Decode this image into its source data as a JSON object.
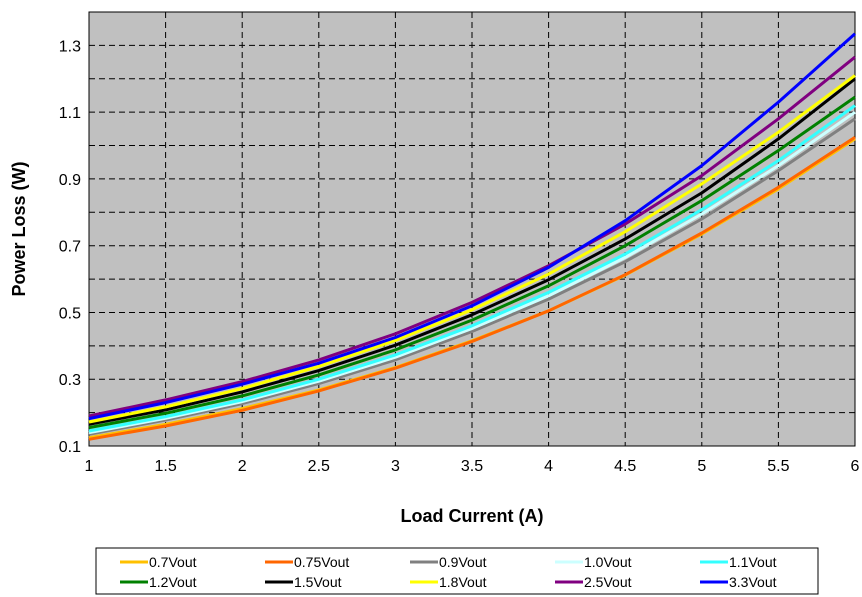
{
  "chart_data": {
    "type": "line",
    "title": "",
    "xlabel": "Load Current (A)",
    "ylabel": "Power Loss (W)",
    "xlim": [
      1,
      6
    ],
    "ylim": [
      0.1,
      1.4
    ],
    "xticks": [
      "1",
      "1.5",
      "2",
      "2.5",
      "3",
      "3.5",
      "4",
      "4.5",
      "5",
      "5.5",
      "6"
    ],
    "yticks": [
      "0.1",
      "0.3",
      "0.5",
      "0.7",
      "0.9",
      "1.1",
      "1.3"
    ],
    "grid": true,
    "legend_position": "bottom",
    "plot_background": "#c0c0c0",
    "x": [
      1,
      1.5,
      2,
      2.5,
      3,
      3.5,
      4,
      4.5,
      5,
      5.5,
      6
    ],
    "series": [
      {
        "name": "0.7Vout",
        "color": "#ffc000",
        "values": [
          0.125,
          0.165,
          0.212,
          0.268,
          0.335,
          0.415,
          0.505,
          0.612,
          0.735,
          0.87,
          1.02
        ]
      },
      {
        "name": "0.75Vout",
        "color": "#ff6600",
        "values": [
          0.12,
          0.16,
          0.207,
          0.265,
          0.333,
          0.413,
          0.505,
          0.613,
          0.738,
          0.875,
          1.025
        ]
      },
      {
        "name": "0.9Vout",
        "color": "#808080",
        "values": [
          0.135,
          0.178,
          0.227,
          0.287,
          0.358,
          0.443,
          0.54,
          0.652,
          0.78,
          0.925,
          1.08
        ]
      },
      {
        "name": "1.0Vout",
        "color": "#ccffff",
        "values": [
          0.14,
          0.183,
          0.233,
          0.294,
          0.366,
          0.452,
          0.55,
          0.665,
          0.795,
          0.94,
          1.1
        ]
      },
      {
        "name": "1.1Vout",
        "color": "#33ffff",
        "values": [
          0.145,
          0.188,
          0.238,
          0.3,
          0.373,
          0.46,
          0.56,
          0.675,
          0.808,
          0.955,
          1.12
        ]
      },
      {
        "name": "1.2Vout",
        "color": "#008000",
        "values": [
          0.155,
          0.198,
          0.25,
          0.313,
          0.388,
          0.477,
          0.58,
          0.7,
          0.835,
          0.985,
          1.145
        ]
      },
      {
        "name": "1.5Vout",
        "color": "#000000",
        "values": [
          0.165,
          0.208,
          0.262,
          0.326,
          0.402,
          0.493,
          0.598,
          0.72,
          0.858,
          1.02,
          1.2
        ]
      },
      {
        "name": "1.8Vout",
        "color": "#ffff00",
        "values": [
          0.172,
          0.217,
          0.272,
          0.338,
          0.416,
          0.508,
          0.615,
          0.742,
          0.885,
          1.04,
          1.21
        ]
      },
      {
        "name": "2.5Vout",
        "color": "#800080",
        "values": [
          0.19,
          0.238,
          0.293,
          0.358,
          0.436,
          0.53,
          0.64,
          0.765,
          0.91,
          1.08,
          1.265
        ]
      },
      {
        "name": "3.3Vout",
        "color": "#0000ff",
        "values": [
          0.182,
          0.23,
          0.285,
          0.348,
          0.425,
          0.52,
          0.635,
          0.775,
          0.94,
          1.13,
          1.335
        ]
      }
    ]
  }
}
